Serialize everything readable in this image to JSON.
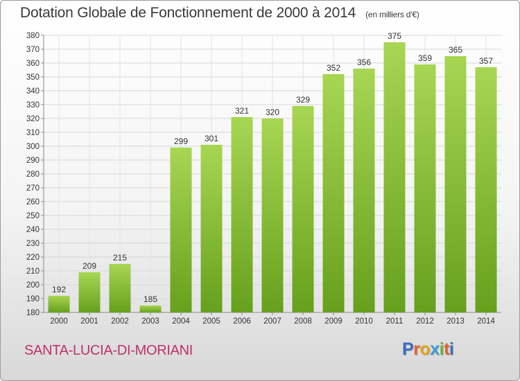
{
  "header": {
    "title": "Dotation Globale de Fonctionnement de 2000 à 2014",
    "subtitle": "(en milliers d'€)"
  },
  "footer": {
    "commune": "SANTA-LUCIA-DI-MORIANI",
    "logo": [
      "P",
      "r",
      "o",
      "x",
      "i",
      "t",
      "i"
    ]
  },
  "colors": {
    "bar_top": "#a7d653",
    "bar_bottom": "#66a01c",
    "commune": "#c0306a",
    "logo": [
      "#3b6bc4",
      "#e8622a",
      "#e8a21e",
      "#3b9bd8",
      "#6cb33f",
      "#e8622a",
      "#3b6bc4"
    ]
  },
  "chart_data": {
    "type": "bar",
    "categories": [
      "2000",
      "2001",
      "2002",
      "2003",
      "2004",
      "2005",
      "2006",
      "2007",
      "2008",
      "2009",
      "2010",
      "2011",
      "2012",
      "2013",
      "2014"
    ],
    "values": [
      192,
      209,
      215,
      185,
      299,
      301,
      321,
      320,
      329,
      352,
      356,
      375,
      359,
      365,
      357
    ],
    "title": "Dotation Globale de Fonctionnement de 2000 à 2014",
    "subtitle": "(en milliers d'€)",
    "ylim": [
      180,
      380
    ],
    "ytick_step": 10,
    "grid": true,
    "legend": "none"
  }
}
